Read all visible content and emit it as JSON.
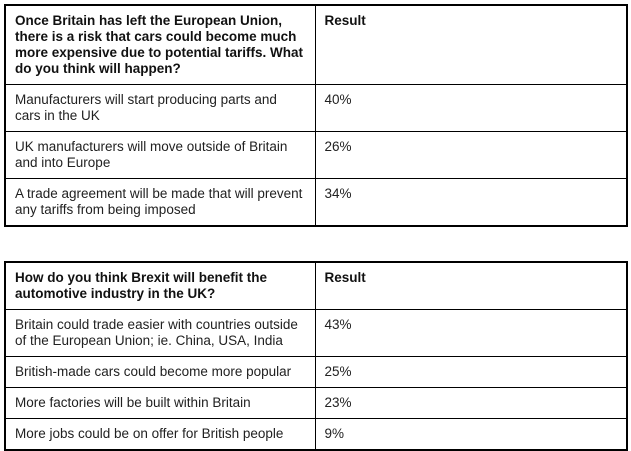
{
  "page": {
    "background_color": "#ffffff",
    "border_color": "#000000",
    "header_text_color": "#111111",
    "body_text_color": "#212121"
  },
  "tables": [
    {
      "header": {
        "question": "Once Britain has left the European Union, there is a risk that cars could become much more expensive due to potential tariffs. What do you think will happen?",
        "result_label": "Result"
      },
      "rows": [
        {
          "answer": "Manufacturers will start producing parts and cars in the UK",
          "result": "40%"
        },
        {
          "answer": "UK manufacturers will move outside of Britain and into Europe",
          "result": "26%"
        },
        {
          "answer": "A trade agreement will be made that will prevent any tariffs from being imposed",
          "result": "34%"
        }
      ]
    },
    {
      "header": {
        "question": "How do you think Brexit will benefit the automotive industry in the UK?",
        "result_label": "Result"
      },
      "rows": [
        {
          "answer": "Britain could trade easier with countries outside of the European Union; ie. China, USA, India",
          "result": "43%"
        },
        {
          "answer": "British-made cars could become more popular",
          "result": "25%"
        },
        {
          "answer": "More factories will be built within Britain",
          "result": "23%"
        },
        {
          "answer": "More jobs could be on offer for British people",
          "result": "9%"
        }
      ]
    }
  ]
}
